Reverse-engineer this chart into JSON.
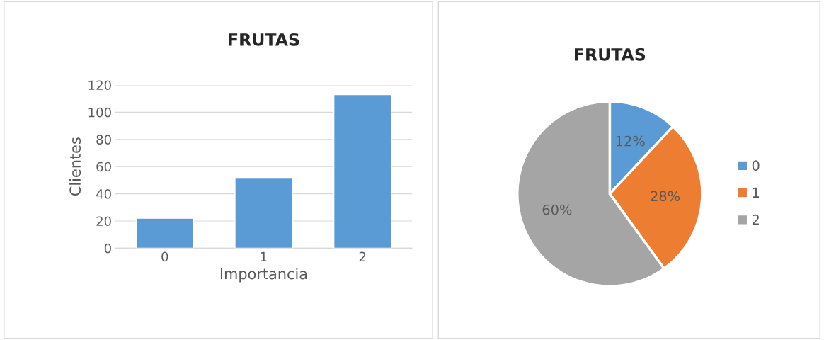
{
  "chart_data": [
    {
      "type": "bar",
      "title": "FRUTAS",
      "xlabel": "Importancia",
      "ylabel": "Clientes",
      "categories": [
        "0",
        "1",
        "2"
      ],
      "values": [
        22,
        52,
        113
      ],
      "color": "#5b9bd5",
      "ylim": [
        0,
        120
      ],
      "yticks": [
        0,
        20,
        40,
        60,
        80,
        100,
        120
      ],
      "grid": "y"
    },
    {
      "type": "pie",
      "title": "FRUTAS",
      "categories": [
        "0",
        "1",
        "2"
      ],
      "values": [
        12,
        28,
        60
      ],
      "colors": [
        "#5b9bd5",
        "#ed7d31",
        "#a5a5a5"
      ],
      "value_labels": [
        "12%",
        "28%",
        "60%"
      ],
      "legend": "right"
    }
  ]
}
